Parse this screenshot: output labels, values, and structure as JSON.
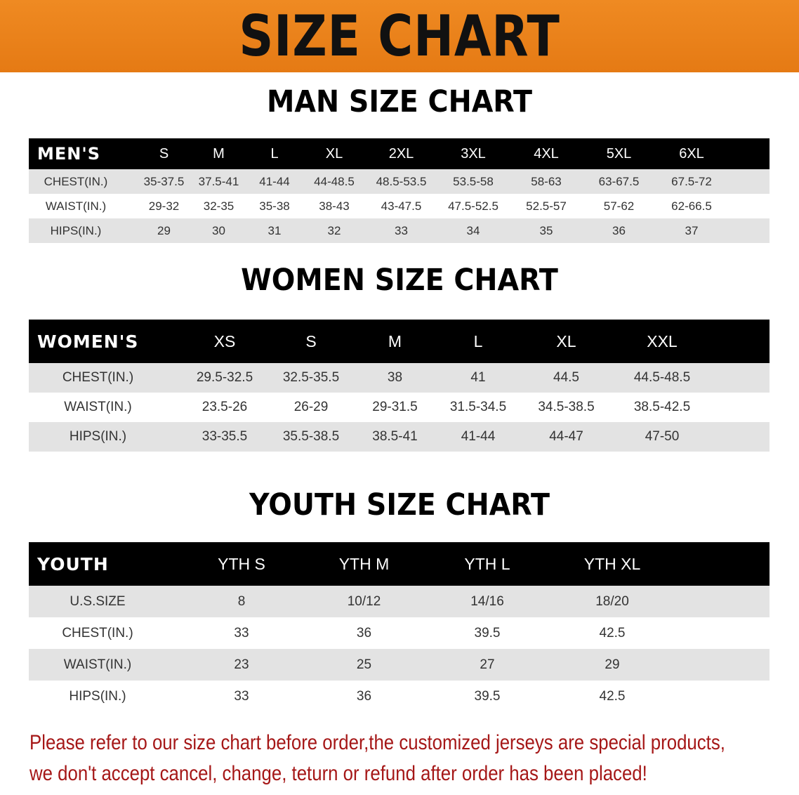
{
  "banner_title": "SIZE CHART",
  "men": {
    "title": "MAN SIZE CHART",
    "header": [
      "MEN'S",
      "S",
      "M",
      "L",
      "XL",
      "2XL",
      "3XL",
      "4XL",
      "5XL",
      "6XL"
    ],
    "rows": [
      [
        "CHEST(IN.)",
        "35-37.5",
        "37.5-41",
        "41-44",
        "44-48.5",
        "48.5-53.5",
        "53.5-58",
        "58-63",
        "63-67.5",
        "67.5-72"
      ],
      [
        "WAIST(IN.)",
        "29-32",
        "32-35",
        "35-38",
        "38-43",
        "43-47.5",
        "47.5-52.5",
        "52.5-57",
        "57-62",
        "62-66.5"
      ],
      [
        "HIPS(IN.)",
        "29",
        "30",
        "31",
        "32",
        "33",
        "34",
        "35",
        "36",
        "37"
      ]
    ]
  },
  "women": {
    "title": "WOMEN SIZE CHART",
    "header": [
      "WOMEN'S",
      "XS",
      "S",
      "M",
      "L",
      "XL",
      "XXL"
    ],
    "rows": [
      [
        "CHEST(IN.)",
        "29.5-32.5",
        "32.5-35.5",
        "38",
        "41",
        "44.5",
        "44.5-48.5"
      ],
      [
        "WAIST(IN.)",
        "23.5-26",
        "26-29",
        "29-31.5",
        "31.5-34.5",
        "34.5-38.5",
        "38.5-42.5"
      ],
      [
        "HIPS(IN.)",
        "33-35.5",
        "35.5-38.5",
        "38.5-41",
        "41-44",
        "44-47",
        "47-50"
      ]
    ]
  },
  "youth": {
    "title": "YOUTH SIZE CHART",
    "header": [
      "YOUTH",
      "YTH S",
      "YTH M",
      "YTH L",
      "YTH XL"
    ],
    "rows": [
      [
        "U.S.SIZE",
        "8",
        "10/12",
        "14/16",
        "18/20"
      ],
      [
        "CHEST(IN.)",
        "33",
        "36",
        "39.5",
        "42.5"
      ],
      [
        "WAIST(IN.)",
        "23",
        "25",
        "27",
        "29"
      ],
      [
        "HIPS(IN.)",
        "33",
        "36",
        "39.5",
        "42.5"
      ]
    ]
  },
  "notice": [
    "Please refer to our size chart before order,the customized jerseys are special products,",
    "we don't accept cancel, change, teturn or refund after order has been placed!"
  ],
  "colors": {
    "banner": "#e8801c",
    "header_row": "#000000",
    "stripe": "#e3e3e3",
    "notice": "#a51717"
  }
}
